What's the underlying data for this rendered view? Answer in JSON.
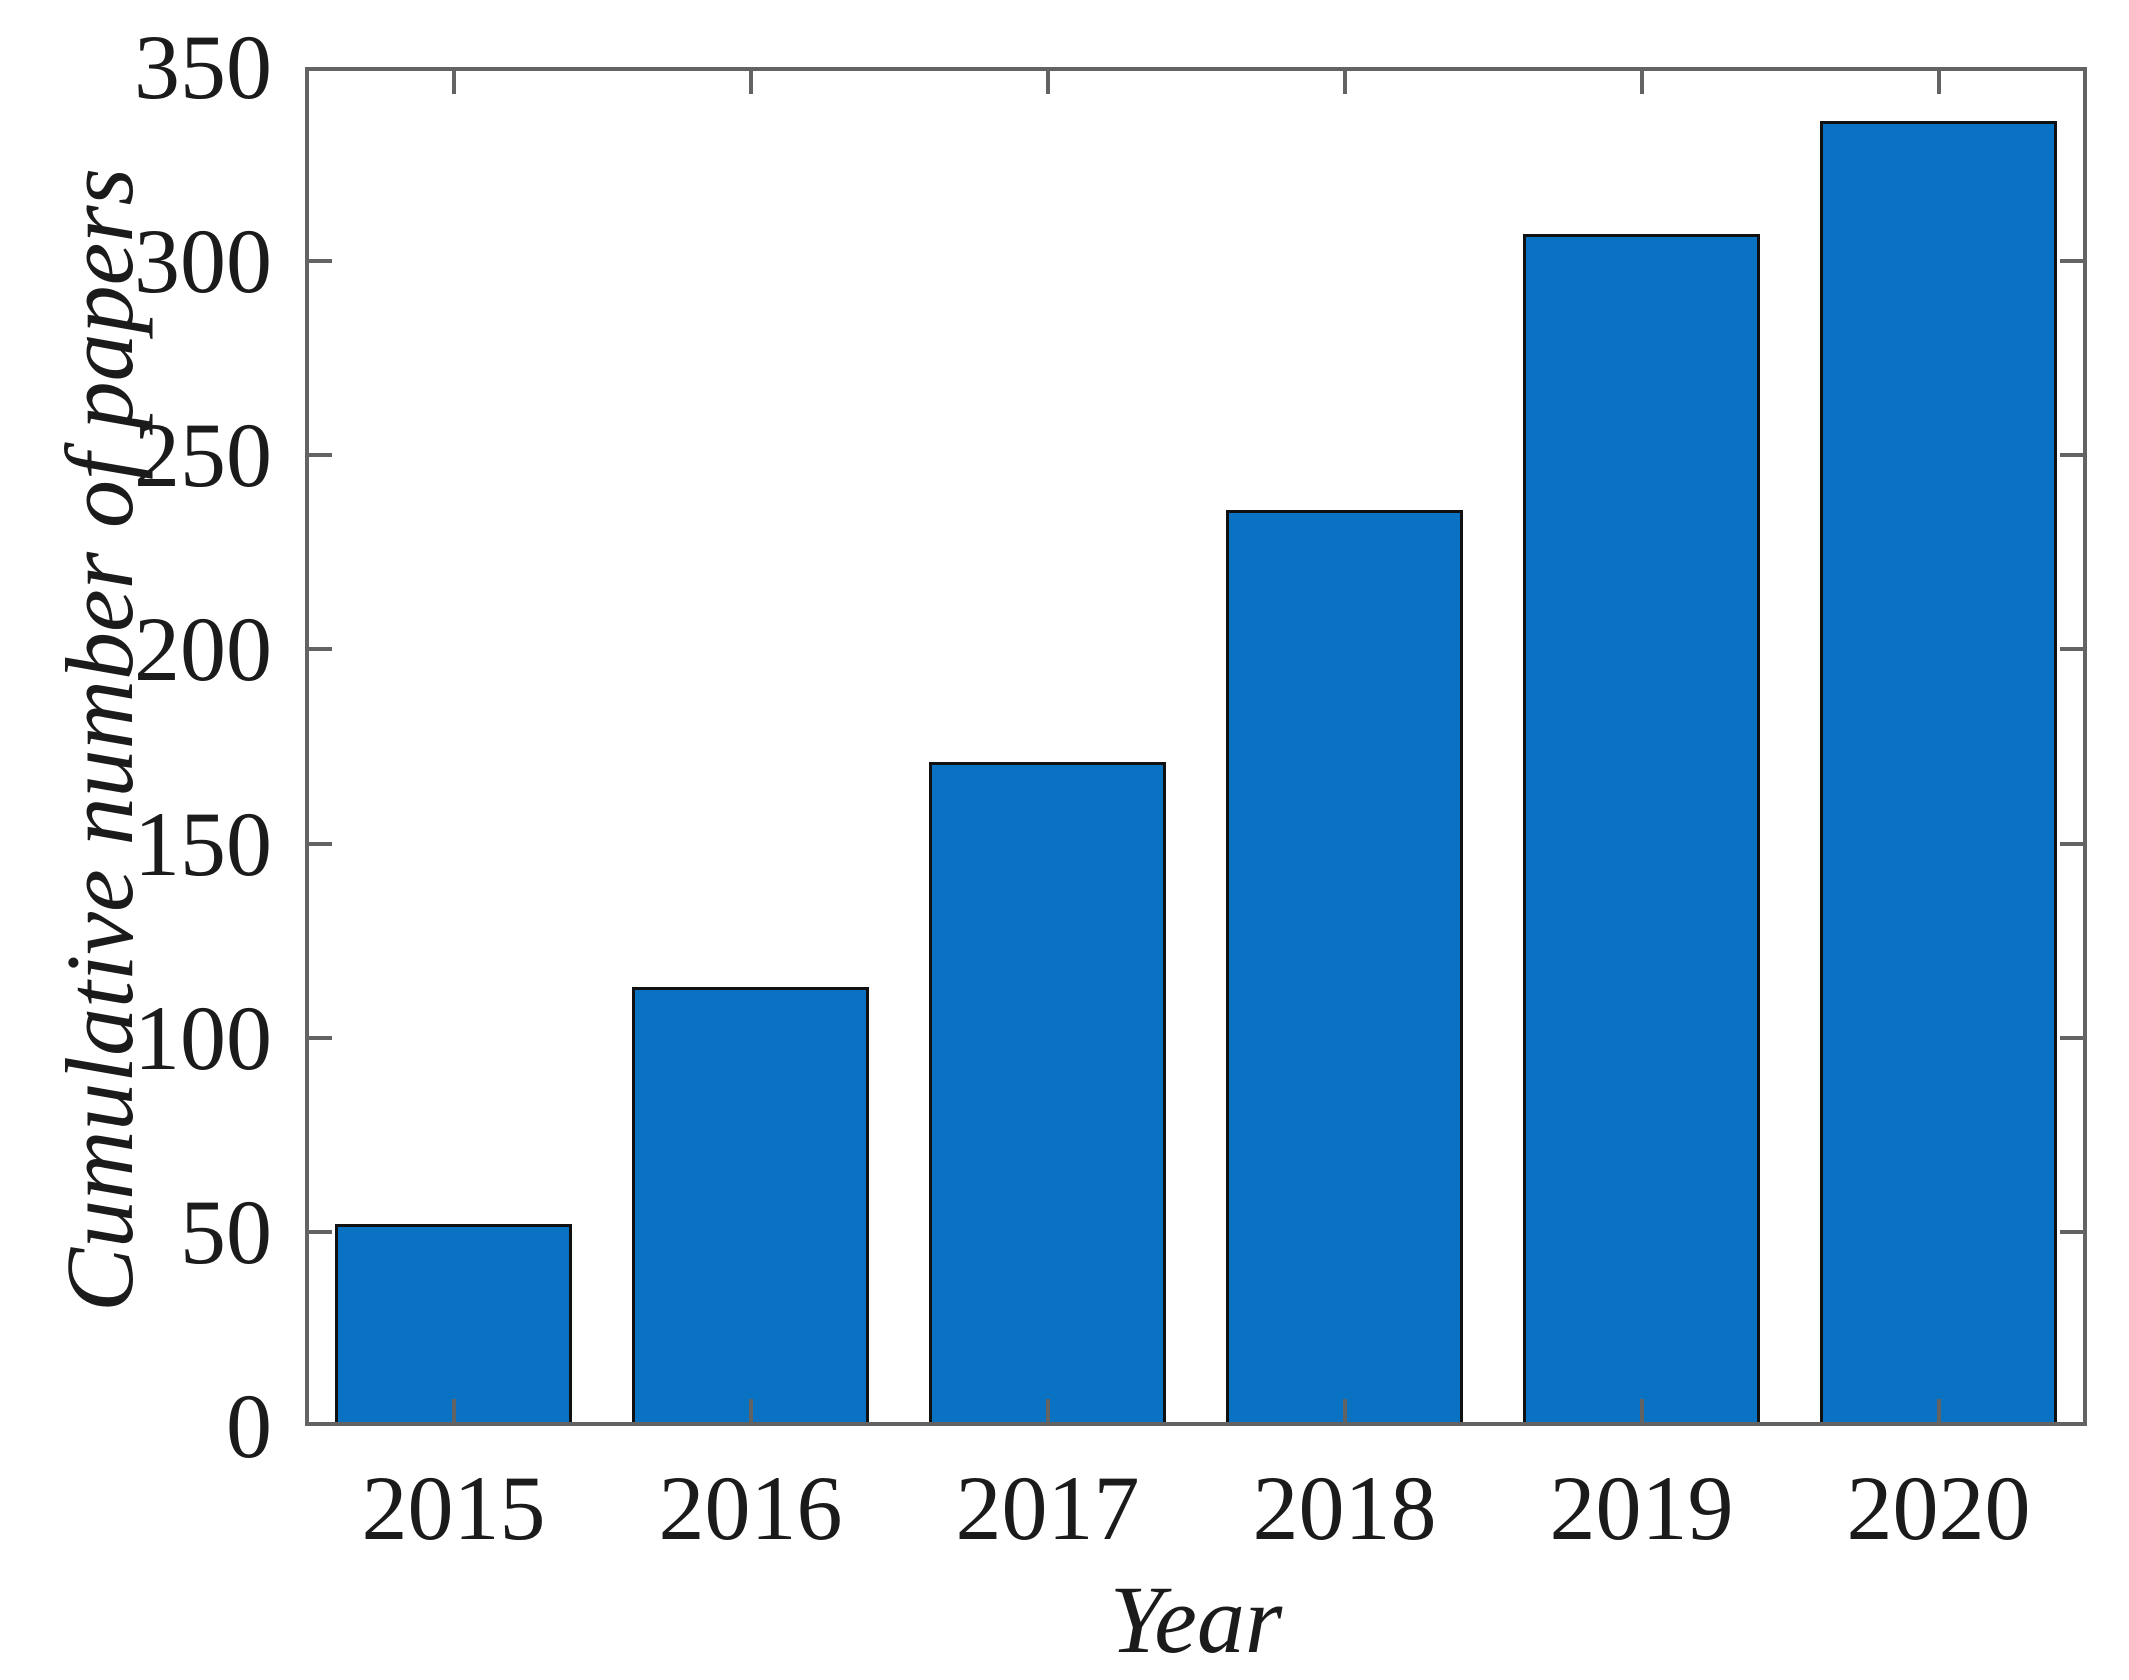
{
  "chart_data": {
    "type": "bar",
    "title": "",
    "categories": [
      "2015",
      "2016",
      "2017",
      "2018",
      "2019",
      "2020"
    ],
    "values": [
      52,
      113,
      171,
      236,
      307,
      336
    ],
    "xlabel": "Year",
    "ylabel": "Cumulative number of papers",
    "ylim": [
      0,
      350
    ],
    "yticks": [
      0,
      50,
      100,
      150,
      200,
      250,
      300,
      350
    ],
    "grid": false,
    "legend": null,
    "bar_width_fraction": 0.8,
    "colors": {
      "bar_fill": "#0a72c2",
      "bar_edge": "#111111",
      "axis": "#636363",
      "label": "#1b1b1b",
      "background": "#ffffff"
    }
  }
}
